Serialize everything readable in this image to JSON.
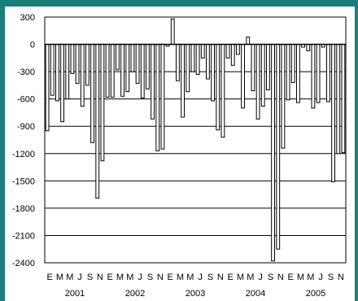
{
  "chart_data": {
    "type": "bar",
    "title": "",
    "xlabel": "",
    "ylabel": "",
    "ylim": [
      -2400,
      300
    ],
    "yticks": [
      300,
      0,
      -300,
      -600,
      -900,
      -1200,
      -1500,
      -1800,
      -2100,
      -2400
    ],
    "grid": true,
    "colors": {
      "bar_fill": "#ffffff",
      "bar_edge": "#000000",
      "frame": "#1a7f7a"
    },
    "month_labels": [
      "E",
      "M",
      "M",
      "J",
      "S",
      "N",
      "E",
      "M",
      "M",
      "J",
      "S",
      "N",
      "E",
      "M",
      "M",
      "J",
      "S",
      "N",
      "E",
      "M",
      "M",
      "J",
      "S",
      "N",
      "E",
      "M",
      "M",
      "J",
      "S",
      "N"
    ],
    "years": [
      "2001",
      "2002",
      "2003",
      "2004",
      "2005"
    ],
    "categories": [
      "2001-01",
      "2001-02",
      "2001-03",
      "2001-04",
      "2001-05",
      "2001-06",
      "2001-07",
      "2001-08",
      "2001-09",
      "2001-10",
      "2001-11",
      "2001-12",
      "2002-01",
      "2002-02",
      "2002-03",
      "2002-04",
      "2002-05",
      "2002-06",
      "2002-07",
      "2002-08",
      "2002-09",
      "2002-10",
      "2002-11",
      "2002-12",
      "2003-01",
      "2003-02",
      "2003-03",
      "2003-04",
      "2003-05",
      "2003-06",
      "2003-07",
      "2003-08",
      "2003-09",
      "2003-10",
      "2003-11",
      "2003-12",
      "2004-01",
      "2004-02",
      "2004-03",
      "2004-04",
      "2004-05",
      "2004-06",
      "2004-07",
      "2004-08",
      "2004-09",
      "2004-10",
      "2004-11",
      "2004-12",
      "2005-01",
      "2005-02",
      "2005-03",
      "2005-04",
      "2005-05",
      "2005-06",
      "2005-07",
      "2005-08",
      "2005-09",
      "2005-10",
      "2005-11",
      "2005-12"
    ],
    "values": [
      -950,
      -560,
      -620,
      -850,
      -600,
      -320,
      -430,
      -680,
      -450,
      -1080,
      -1690,
      -1280,
      -580,
      -580,
      -280,
      -570,
      -520,
      -300,
      -430,
      -590,
      -490,
      -820,
      -1170,
      -1150,
      -20,
      280,
      -400,
      -800,
      -520,
      -300,
      -330,
      -150,
      -380,
      -620,
      -940,
      -1020,
      -150,
      -230,
      -110,
      -700,
      80,
      -510,
      -820,
      -680,
      -500,
      -2380,
      -2250,
      -1140,
      -610,
      -420,
      -640,
      -30,
      -70,
      -700,
      -640,
      -30,
      -630,
      -1510,
      -1200,
      -1190
    ]
  }
}
